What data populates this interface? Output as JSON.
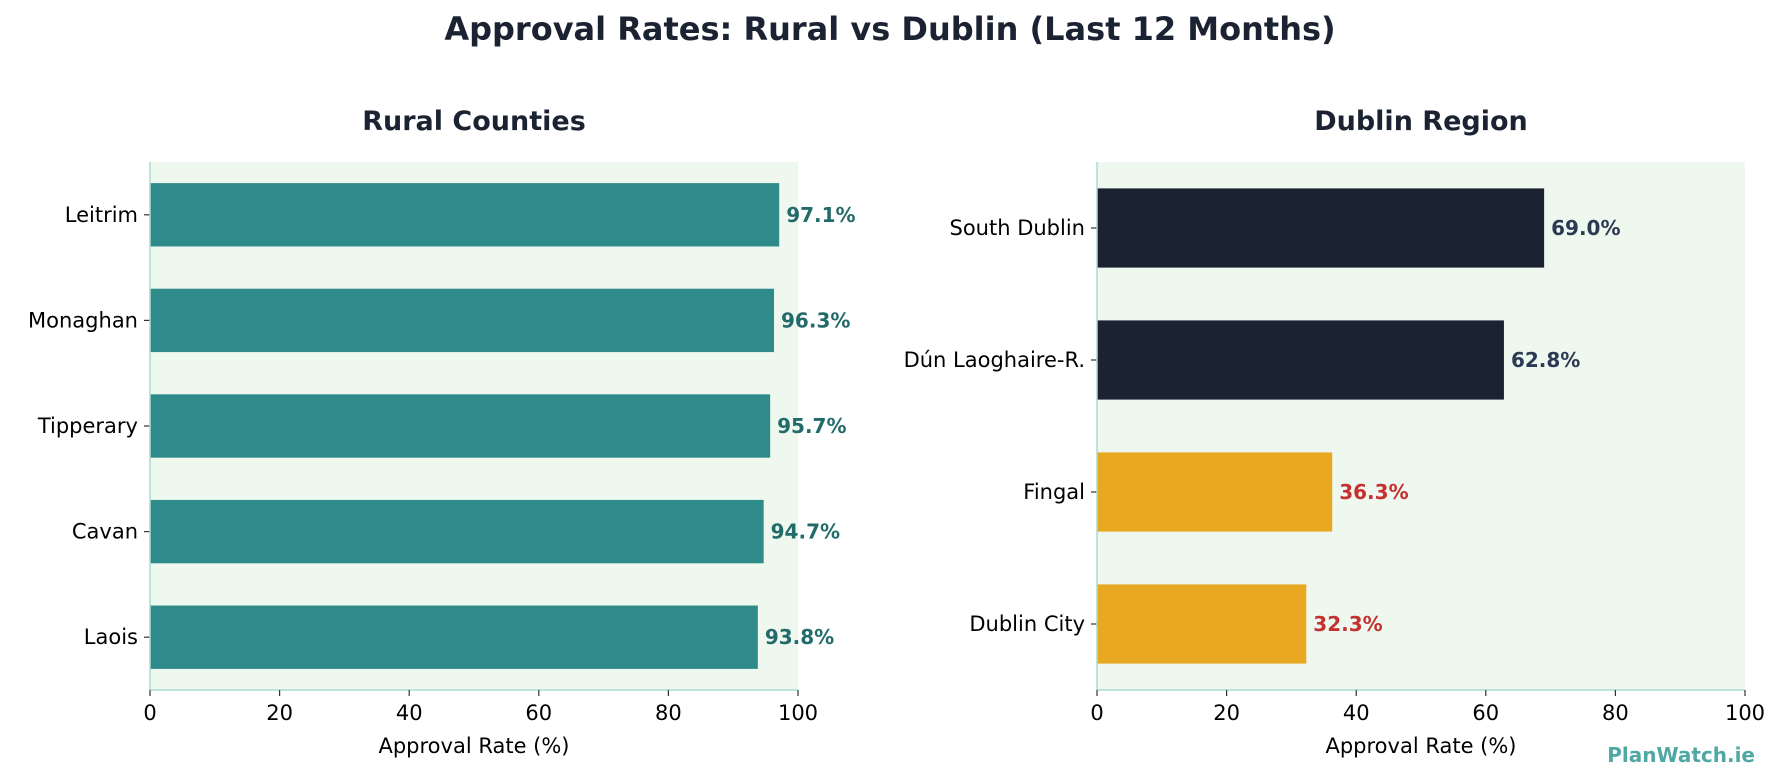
{
  "title": "Approval Rates: Rural vs Dublin (Last 12 Months)",
  "watermark": "PlanWatch.ie",
  "colors": {
    "title": "#1b2333",
    "plot_background": "#eef8ee",
    "axis_spine": "#a8dcd4",
    "teal_bar": "#2e8b8a",
    "teal_label": "#236b6a",
    "navy_bar": "#1b2333",
    "navy_label": "#2b3a52",
    "amber_bar": "#e9a822",
    "red_label": "#c53030",
    "watermark": "#4fa8a4"
  },
  "chart_data": [
    {
      "type": "bar",
      "orientation": "horizontal",
      "title": "Rural Counties",
      "xlabel": "Approval Rate (%)",
      "ylabel": "",
      "xlim": [
        0,
        100
      ],
      "xticks": [
        0,
        20,
        40,
        60,
        80,
        100
      ],
      "grid": false,
      "categories": [
        "Leitrim",
        "Monaghan",
        "Tipperary",
        "Cavan",
        "Laois"
      ],
      "values": [
        97.1,
        96.3,
        95.7,
        94.7,
        93.8
      ],
      "value_labels": [
        "97.1%",
        "96.3%",
        "95.7%",
        "94.7%",
        "93.8%"
      ],
      "bar_colors": [
        "#2e8b8a",
        "#2e8b8a",
        "#2e8b8a",
        "#2e8b8a",
        "#2e8b8a"
      ],
      "label_colors": [
        "#236b6a",
        "#236b6a",
        "#236b6a",
        "#236b6a",
        "#236b6a"
      ]
    },
    {
      "type": "bar",
      "orientation": "horizontal",
      "title": "Dublin Region",
      "xlabel": "Approval Rate (%)",
      "ylabel": "",
      "xlim": [
        0,
        100
      ],
      "xticks": [
        0,
        20,
        40,
        60,
        80,
        100
      ],
      "grid": false,
      "categories": [
        "South Dublin",
        "Dún Laoghaire-R.",
        "Fingal",
        "Dublin City"
      ],
      "values": [
        69.0,
        62.8,
        36.3,
        32.3
      ],
      "value_labels": [
        "69.0%",
        "62.8%",
        "36.3%",
        "32.3%"
      ],
      "bar_colors": [
        "#1b2333",
        "#1b2333",
        "#e9a822",
        "#e9a822"
      ],
      "label_colors": [
        "#2b3a52",
        "#2b3a52",
        "#c53030",
        "#c53030"
      ]
    }
  ]
}
